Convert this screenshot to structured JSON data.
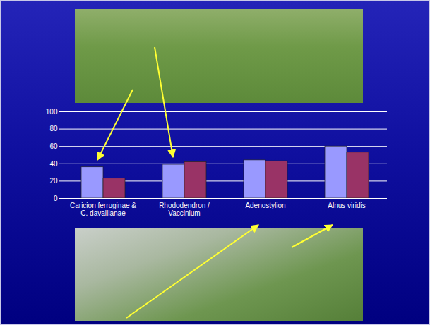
{
  "chart_data": {
    "type": "bar",
    "categories": [
      "Caricion ferruginae & C. davallianae",
      "Rhododendron / Vaccinium",
      "Adenostylion",
      "Alnus viridis"
    ],
    "series": [
      {
        "color": "#9999ff",
        "values": [
          36,
          39,
          44,
          60
        ]
      },
      {
        "color": "#993366",
        "values": [
          23,
          42,
          43,
          53
        ]
      }
    ],
    "ylim": [
      0,
      100
    ],
    "yticks": [
      0,
      20,
      40,
      60,
      80,
      100
    ],
    "grid": true
  }
}
